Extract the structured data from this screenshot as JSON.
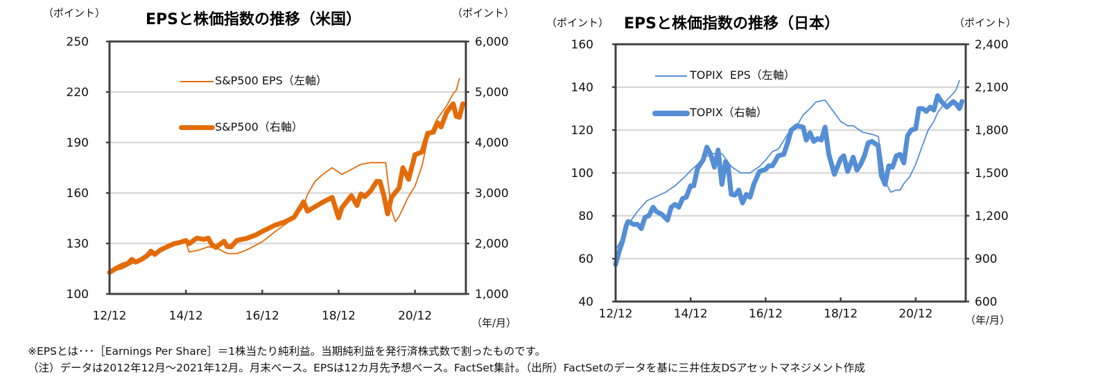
{
  "chart_data": [
    {
      "type": "line",
      "title": "EPSと株価指数の推移（米国）",
      "left_unit": "（ポイント）",
      "right_unit": "（ポイント）",
      "x_unit": "（年/月）",
      "xlim": [
        2012.917,
        2022.25
      ],
      "x_ticks": [
        {
          "x": 2012.917,
          "label": "12/12"
        },
        {
          "x": 2014.917,
          "label": "14/12"
        },
        {
          "x": 2016.917,
          "label": "16/12"
        },
        {
          "x": 2018.917,
          "label": "18/12"
        },
        {
          "x": 2020.917,
          "label": "20/12"
        }
      ],
      "ylim_left": [
        100,
        250
      ],
      "y_ticks_left": [
        "100",
        "130",
        "160",
        "190",
        "220",
        "250"
      ],
      "ylim_right": [
        1000,
        6000
      ],
      "y_ticks_right": [
        "1,000",
        "2,000",
        "3,000",
        "4,000",
        "5,000",
        "6,000"
      ],
      "grid": true,
      "color": "#E36C0A",
      "legend": [
        "S&P500 EPS（左軸）",
        "S&P500（右軸）"
      ],
      "series": [
        {
          "name": "S&P500 EPS（左軸）",
          "axis": "left",
          "x": [
            2012.917,
            2013.25,
            2013.5,
            2013.75,
            2014.0,
            2014.25,
            2014.5,
            2014.75,
            2014.917,
            2015.0,
            2015.25,
            2015.5,
            2015.75,
            2016.0,
            2016.25,
            2016.5,
            2016.75,
            2016.917,
            2017.25,
            2017.5,
            2017.75,
            2018.0,
            2018.1,
            2018.3,
            2018.5,
            2018.75,
            2019.0,
            2019.25,
            2019.5,
            2019.75,
            2020.0,
            2020.15,
            2020.3,
            2020.4,
            2020.5,
            2020.75,
            2020.917,
            2021.1,
            2021.25,
            2021.5,
            2021.75,
            2021.917,
            2022.0,
            2022.08
          ],
          "values": [
            113,
            115,
            118,
            121,
            123,
            126,
            128,
            131,
            131,
            125,
            126,
            128,
            127,
            124,
            124,
            126,
            129,
            131,
            137,
            141,
            145,
            152,
            159,
            167,
            171,
            175,
            171,
            174,
            177,
            178,
            178,
            178,
            150,
            143,
            146,
            158,
            164,
            176,
            192,
            204,
            212,
            219,
            221,
            228
          ]
        },
        {
          "name": "S&P500（右軸）",
          "axis": "right",
          "x": [
            2012.917,
            2013.1,
            2013.25,
            2013.4,
            2013.5,
            2013.6,
            2013.75,
            2013.9,
            2014.0,
            2014.1,
            2014.25,
            2014.4,
            2014.5,
            2014.6,
            2014.75,
            2014.917,
            2015.0,
            2015.2,
            2015.4,
            2015.5,
            2015.6,
            2015.7,
            2015.917,
            2016.0,
            2016.1,
            2016.25,
            2016.5,
            2016.75,
            2016.917,
            2017.25,
            2017.5,
            2017.75,
            2018.0,
            2018.1,
            2018.25,
            2018.5,
            2018.75,
            2018.917,
            2019.0,
            2019.25,
            2019.4,
            2019.5,
            2019.6,
            2019.75,
            2019.917,
            2020.0,
            2020.1,
            2020.2,
            2020.3,
            2020.5,
            2020.6,
            2020.75,
            2020.917,
            2021.1,
            2021.25,
            2021.4,
            2021.5,
            2021.6,
            2021.75,
            2021.917,
            2022.0,
            2022.08,
            2022.17
          ],
          "values": [
            1426,
            1514,
            1569,
            1606,
            1685,
            1630,
            1682,
            1756,
            1848,
            1782,
            1872,
            1924,
            1960,
            1995,
            2018,
            2059,
            1995,
            2105,
            2080,
            2107,
            1972,
            1920,
            2044,
            1940,
            1932,
            2060,
            2099,
            2168,
            2239,
            2362,
            2423,
            2519,
            2824,
            2640,
            2705,
            2816,
            2914,
            2507,
            2704,
            2946,
            2752,
            2980,
            2926,
            3037,
            3231,
            3226,
            2954,
            2585,
            2912,
            3100,
            3500,
            3270,
            3756,
            3811,
            4181,
            4204,
            4395,
            4307,
            4605,
            4766,
            4516,
            4500,
            4766
          ]
        }
      ]
    },
    {
      "type": "line",
      "title": "EPSと株価指数の推移（日本）",
      "left_unit": "（ポイント）",
      "right_unit": "（ポイント）",
      "x_unit": "（年/月）",
      "xlim": [
        2012.917,
        2022.25
      ],
      "x_ticks": [
        {
          "x": 2012.917,
          "label": "12/12"
        },
        {
          "x": 2014.917,
          "label": "14/12"
        },
        {
          "x": 2016.917,
          "label": "16/12"
        },
        {
          "x": 2018.917,
          "label": "18/12"
        },
        {
          "x": 2020.917,
          "label": "20/12"
        }
      ],
      "ylim_left": [
        40,
        160
      ],
      "y_ticks_left": [
        "40",
        "60",
        "80",
        "100",
        "120",
        "140",
        "160"
      ],
      "ylim_right": [
        600,
        2400
      ],
      "y_ticks_right": [
        "600",
        "900",
        "1,200",
        "1,500",
        "1,800",
        "2,100",
        "2,400"
      ],
      "grid": true,
      "color": "#558ED5",
      "legend": [
        "TOPIX  EPS（左軸）",
        "TOPIX（右軸）"
      ],
      "series": [
        {
          "name": "TOPIX  EPS（左軸）",
          "axis": "left",
          "x": [
            2012.917,
            2013.1,
            2013.25,
            2013.5,
            2013.75,
            2014.0,
            2014.25,
            2014.5,
            2014.75,
            2014.917,
            2015.1,
            2015.25,
            2015.5,
            2015.6,
            2015.75,
            2016.0,
            2016.25,
            2016.5,
            2016.75,
            2016.917,
            2017.1,
            2017.25,
            2017.5,
            2017.75,
            2017.917,
            2018.1,
            2018.25,
            2018.5,
            2018.75,
            2018.917,
            2019.1,
            2019.25,
            2019.5,
            2019.75,
            2019.917,
            2020.0,
            2020.1,
            2020.25,
            2020.4,
            2020.5,
            2020.6,
            2020.75,
            2020.917,
            2021.1,
            2021.25,
            2021.4,
            2021.5,
            2021.75,
            2021.917,
            2022.0,
            2022.08
          ],
          "values": [
            64,
            70,
            76,
            82,
            87,
            89,
            91,
            94,
            98,
            101,
            104,
            107,
            109,
            109,
            109,
            103,
            100,
            100,
            103,
            106,
            110,
            111,
            118,
            122,
            127,
            130,
            133,
            134,
            128,
            124,
            122,
            122,
            119,
            118,
            117,
            108,
            96,
            91,
            92,
            92,
            95,
            98,
            104,
            113,
            120,
            124,
            128,
            134,
            137,
            139,
            143
          ]
        },
        {
          "name": "TOPIX（右軸）",
          "axis": "right",
          "x": [
            2012.917,
            2013.0,
            2013.1,
            2013.2,
            2013.25,
            2013.4,
            2013.5,
            2013.6,
            2013.7,
            2013.8,
            2013.917,
            2014.0,
            2014.15,
            2014.3,
            2014.4,
            2014.5,
            2014.6,
            2014.7,
            2014.8,
            2014.917,
            2015.0,
            2015.1,
            2015.25,
            2015.35,
            2015.45,
            2015.55,
            2015.65,
            2015.75,
            2015.85,
            2015.917,
            2016.0,
            2016.1,
            2016.2,
            2016.3,
            2016.4,
            2016.5,
            2016.6,
            2016.75,
            2016.917,
            2017.0,
            2017.1,
            2017.25,
            2017.4,
            2017.5,
            2017.6,
            2017.75,
            2017.917,
            2018.0,
            2018.1,
            2018.2,
            2018.3,
            2018.4,
            2018.5,
            2018.6,
            2018.75,
            2018.917,
            2019.0,
            2019.1,
            2019.25,
            2019.35,
            2019.45,
            2019.55,
            2019.65,
            2019.75,
            2019.917,
            2020.0,
            2020.1,
            2020.2,
            2020.3,
            2020.4,
            2020.5,
            2020.6,
            2020.7,
            2020.8,
            2020.917,
            2021.0,
            2021.1,
            2021.2,
            2021.3,
            2021.4,
            2021.5,
            2021.6,
            2021.75,
            2021.917,
            2022.0,
            2022.08,
            2022.15
          ],
          "values": [
            860,
            940,
            1020,
            1130,
            1160,
            1140,
            1140,
            1110,
            1190,
            1200,
            1260,
            1230,
            1210,
            1170,
            1260,
            1280,
            1260,
            1320,
            1330,
            1410,
            1410,
            1530,
            1590,
            1680,
            1630,
            1540,
            1660,
            1420,
            1580,
            1545,
            1350,
            1345,
            1380,
            1290,
            1350,
            1330,
            1420,
            1510,
            1525,
            1550,
            1550,
            1620,
            1630,
            1710,
            1800,
            1830,
            1820,
            1730,
            1780,
            1720,
            1740,
            1730,
            1820,
            1630,
            1490,
            1600,
            1620,
            1510,
            1610,
            1520,
            1560,
            1620,
            1710,
            1720,
            1690,
            1480,
            1420,
            1550,
            1540,
            1620,
            1630,
            1570,
            1760,
            1800,
            1810,
            1950,
            1950,
            1930,
            1960,
            1940,
            2040,
            2000,
            1960,
            2000,
            1980,
            1950,
            2000
          ]
        }
      ]
    }
  ],
  "notes": [
    "※EPSとは･･･［Earnings Per Share］＝1株当たり純利益。当期純利益を発行済株式数で割ったものです。",
    "（注）データは2012年12月～2021年12月。月末ベース。EPSは12カ月先予想ベース。FactSet集計。（出所）FactSetのデータを基に三井住友DSアセットマネジメント作成"
  ]
}
